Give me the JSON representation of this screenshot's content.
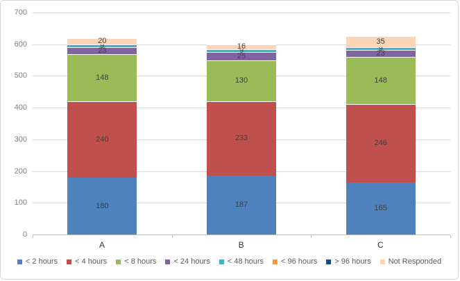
{
  "chart_data": {
    "type": "bar",
    "stacked": true,
    "title": "",
    "xlabel": "",
    "ylabel": "",
    "categories": [
      "A",
      "B",
      "C"
    ],
    "series": [
      {
        "name": "< 2 hours",
        "color": "#4f81bd",
        "values": [
          180,
          187,
          165
        ]
      },
      {
        "name": "< 4 hours",
        "color": "#c0504d",
        "values": [
          240,
          233,
          246
        ]
      },
      {
        "name": "< 8 hours",
        "color": "#9bbb59",
        "values": [
          148,
          130,
          148
        ]
      },
      {
        "name": "< 24 hours",
        "color": "#8064a2",
        "values": [
          23,
          25,
          23
        ]
      },
      {
        "name": "< 48 hours",
        "color": "#4bacc6",
        "values": [
          9,
          9,
          9
        ]
      },
      {
        "name": "< 96 hours",
        "color": "#f79646",
        "values": [
          0,
          0,
          0
        ]
      },
      {
        "name": "> 96 hours",
        "color": "#1f497d",
        "values": [
          0,
          0,
          0
        ]
      },
      {
        "name": "Not Responded",
        "color": "#fbd5b5",
        "values": [
          20,
          16,
          35
        ]
      }
    ],
    "totals": [
      620,
      600,
      626
    ],
    "ylim": [
      0,
      700
    ],
    "yticks": [
      0,
      100,
      200,
      300,
      400,
      500,
      600,
      700
    ],
    "grid": true,
    "legend_position": "bottom",
    "hide_zero_labels": true,
    "grid_color": "#d9d9d9",
    "axis_color": "#bfbfbf",
    "tick_label_color": "#7f7f7f",
    "data_label_color": "#3f3f3f",
    "legend_text_color": "#595959"
  }
}
